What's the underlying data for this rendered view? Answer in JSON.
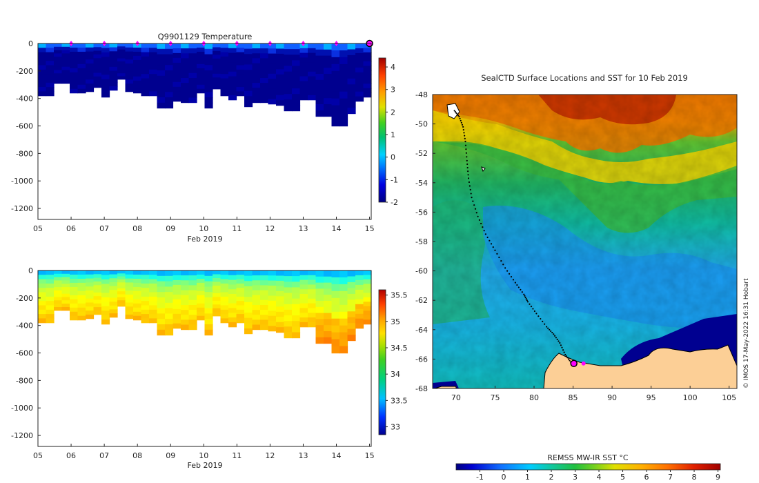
{
  "chart_data": [
    {
      "type": "heatmap",
      "title": "Q9901129  Temperature",
      "xlabel": "Feb 2019",
      "ylabel": "",
      "x_ticks": [
        "05",
        "06",
        "07",
        "08",
        "09",
        "10",
        "11",
        "12",
        "13",
        "14",
        "15"
      ],
      "y_ticks": [
        "0",
        "-200",
        "-400",
        "-600",
        "-800",
        "-1000",
        "-1200"
      ],
      "xlim": [
        5,
        15.05
      ],
      "ylim": [
        -1280,
        0
      ],
      "colorbar": {
        "ticks": [
          "4",
          "3",
          "2",
          "1",
          "0",
          "-1",
          "-2"
        ],
        "range": [
          -2,
          4.4
        ]
      },
      "profile_marker_days": [
        6,
        7,
        8,
        9,
        10,
        11,
        12,
        13,
        14
      ],
      "profile_depths": [
        -380,
        -380,
        -290,
        -290,
        -360,
        -360,
        -350,
        -320,
        -390,
        -340,
        -260,
        -350,
        -360,
        -380,
        -380,
        -470,
        -470,
        -420,
        -430,
        -430,
        -360,
        -470,
        -330,
        -380,
        -410,
        -380,
        -460,
        -430,
        -430,
        -440,
        -450,
        -490,
        -490,
        -410,
        -410,
        -530,
        -530,
        -600,
        -600,
        -510,
        -420,
        -390
      ]
    },
    {
      "type": "heatmap",
      "title": "",
      "xlabel": "Feb 2019",
      "ylabel": "",
      "x_ticks": [
        "05",
        "06",
        "07",
        "08",
        "09",
        "10",
        "11",
        "12",
        "13",
        "14",
        "15"
      ],
      "y_ticks": [
        "0",
        "-200",
        "-400",
        "-600",
        "-800",
        "-1000",
        "-1200"
      ],
      "xlim": [
        5,
        15.05
      ],
      "ylim": [
        -1280,
        0
      ],
      "colorbar": {
        "ticks": [
          "35.5",
          "35",
          "34.5",
          "34",
          "33.5",
          "33"
        ],
        "range": [
          32.85,
          35.6
        ]
      }
    },
    {
      "type": "heatmap",
      "title": "SealCTD Surface Locations and SST for 10 Feb 2019",
      "xlabel": "",
      "ylabel": "",
      "x_ticks": [
        "70",
        "75",
        "80",
        "85",
        "90",
        "95",
        "100",
        "105"
      ],
      "y_ticks": [
        "-48",
        "-50",
        "-52",
        "-54",
        "-56",
        "-58",
        "-60",
        "-62",
        "-64",
        "-66",
        "-68"
      ],
      "xlim": [
        67,
        106
      ],
      "ylim": [
        -68,
        -48
      ],
      "colorbar": {
        "label": "REMSS MW-IR SST °C",
        "ticks": [
          "-1",
          "0",
          "1",
          "2",
          "3",
          "4",
          "5",
          "6",
          "7",
          "8",
          "9"
        ],
        "range": [
          -2,
          9.1
        ]
      },
      "track": [
        [
          69.8,
          -49.1
        ],
        [
          70.4,
          -49.5
        ],
        [
          70.9,
          -50.2
        ],
        [
          71.2,
          -51.2
        ],
        [
          71.4,
          -52.5
        ],
        [
          71.6,
          -53.7
        ],
        [
          72.0,
          -55.0
        ],
        [
          72.8,
          -56.3
        ],
        [
          73.8,
          -57.5
        ],
        [
          75.0,
          -58.6
        ],
        [
          76.3,
          -59.8
        ],
        [
          77.6,
          -60.8
        ],
        [
          78.7,
          -61.6
        ],
        [
          79.2,
          -62.1
        ],
        [
          80.3,
          -62.9
        ],
        [
          81.6,
          -63.8
        ],
        [
          82.5,
          -64.3
        ],
        [
          83.3,
          -64.9
        ],
        [
          84.0,
          -65.7
        ],
        [
          84.7,
          -66.2
        ],
        [
          85.1,
          -66.3
        ]
      ],
      "current_position": [
        85.1,
        -66.3
      ],
      "credit": "© IMOS 17-May-2022 16:31 Hobart"
    }
  ],
  "colors": {
    "jet": [
      "#00007f",
      "#0000ff",
      "#007fff",
      "#00ffff",
      "#7fff7f",
      "#ffff00",
      "#ff7f00",
      "#ff0000",
      "#7f0000"
    ],
    "land": "#fccf96",
    "marker": "#ff00ff",
    "track": "#000000"
  }
}
